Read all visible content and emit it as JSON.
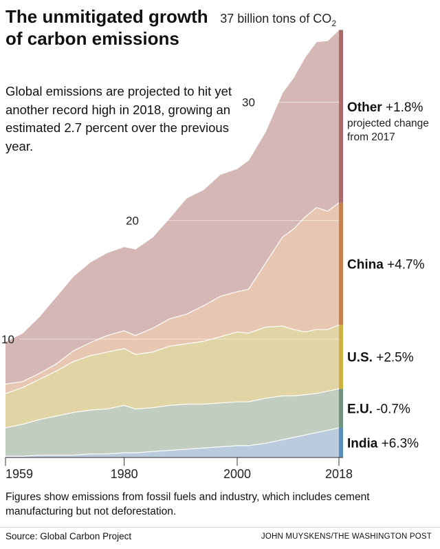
{
  "title": "The unmitigated growth of carbon emissions",
  "subtitle": "Global emissions are projected to hit yet another record high in 2018, growing an estimated 2.7 percent over the previous year.",
  "caption": "Figures show emissions from fossil fuels and industry, which includes cement manufacturing but not deforestation.",
  "source": "Source: Global Carbon Project",
  "credit": "JOHN MUYSKENS/THE WASHINGTON POST",
  "chart_data": {
    "type": "area",
    "stacked": true,
    "title": "The unmitigated growth of carbon emissions",
    "xlabel": "",
    "ylabel": "billion tons of CO2",
    "xlim": [
      1959,
      2018
    ],
    "ylim": [
      0,
      37
    ],
    "x_ticks": [
      "1959",
      "1980",
      "2000",
      "2018"
    ],
    "y_ticks": [
      {
        "value": 10,
        "label": "10"
      },
      {
        "value": 20,
        "label": "20"
      },
      {
        "value": 30,
        "label": "30"
      }
    ],
    "top_label": {
      "value": 37,
      "text": "37 billion tons of CO",
      "sub": "2"
    },
    "change_note": "projected change from 2017",
    "x": [
      1959,
      1962,
      1965,
      1968,
      1971,
      1974,
      1977,
      1980,
      1982,
      1985,
      1988,
      1991,
      1994,
      1997,
      2000,
      2002,
      2005,
      2008,
      2010,
      2012,
      2014,
      2016,
      2018
    ],
    "series": [
      {
        "name": "India",
        "change": "+6.3%",
        "color": "#bacbdd",
        "edge": "#5b8db8",
        "values": [
          0.1,
          0.1,
          0.2,
          0.2,
          0.2,
          0.3,
          0.3,
          0.4,
          0.4,
          0.5,
          0.6,
          0.7,
          0.8,
          0.9,
          1.0,
          1.0,
          1.2,
          1.5,
          1.7,
          1.9,
          2.1,
          2.3,
          2.5
        ]
      },
      {
        "name": "E.U.",
        "change": "-0.7%",
        "color": "#c2cdc1",
        "edge": "#6f9580",
        "values": [
          2.4,
          2.7,
          3.0,
          3.3,
          3.6,
          3.7,
          3.8,
          4.0,
          3.7,
          3.7,
          3.8,
          3.8,
          3.7,
          3.7,
          3.7,
          3.7,
          3.8,
          3.7,
          3.5,
          3.4,
          3.3,
          3.3,
          3.3
        ]
      },
      {
        "name": "U.S.",
        "change": "+2.5%",
        "color": "#e1d5a5",
        "edge": "#cfb23d",
        "values": [
          2.9,
          3.1,
          3.4,
          3.8,
          4.3,
          4.6,
          4.8,
          4.8,
          4.6,
          4.7,
          5.0,
          5.1,
          5.3,
          5.6,
          5.9,
          5.8,
          6.0,
          5.9,
          5.6,
          5.3,
          5.4,
          5.2,
          5.4
        ]
      },
      {
        "name": "China",
        "change": "+4.7%",
        "color": "#e8c7b2",
        "edge": "#c28253",
        "values": [
          0.8,
          0.5,
          0.5,
          0.6,
          0.9,
          1.1,
          1.4,
          1.5,
          1.6,
          2.0,
          2.3,
          2.5,
          3.0,
          3.4,
          3.4,
          3.7,
          5.4,
          7.5,
          8.5,
          9.7,
          10.3,
          10.0,
          10.3
        ]
      },
      {
        "name": "Other",
        "change": "+1.8%",
        "color": "#d5b8b6",
        "edge": "#a86b6b",
        "values": [
          3.6,
          4.1,
          4.8,
          5.7,
          6.3,
          6.8,
          7.0,
          7.1,
          7.3,
          7.7,
          8.5,
          9.8,
          9.8,
          10.3,
          10.4,
          10.9,
          11.1,
          12.2,
          12.8,
          13.5,
          14.0,
          14.4,
          14.6
        ]
      }
    ]
  }
}
